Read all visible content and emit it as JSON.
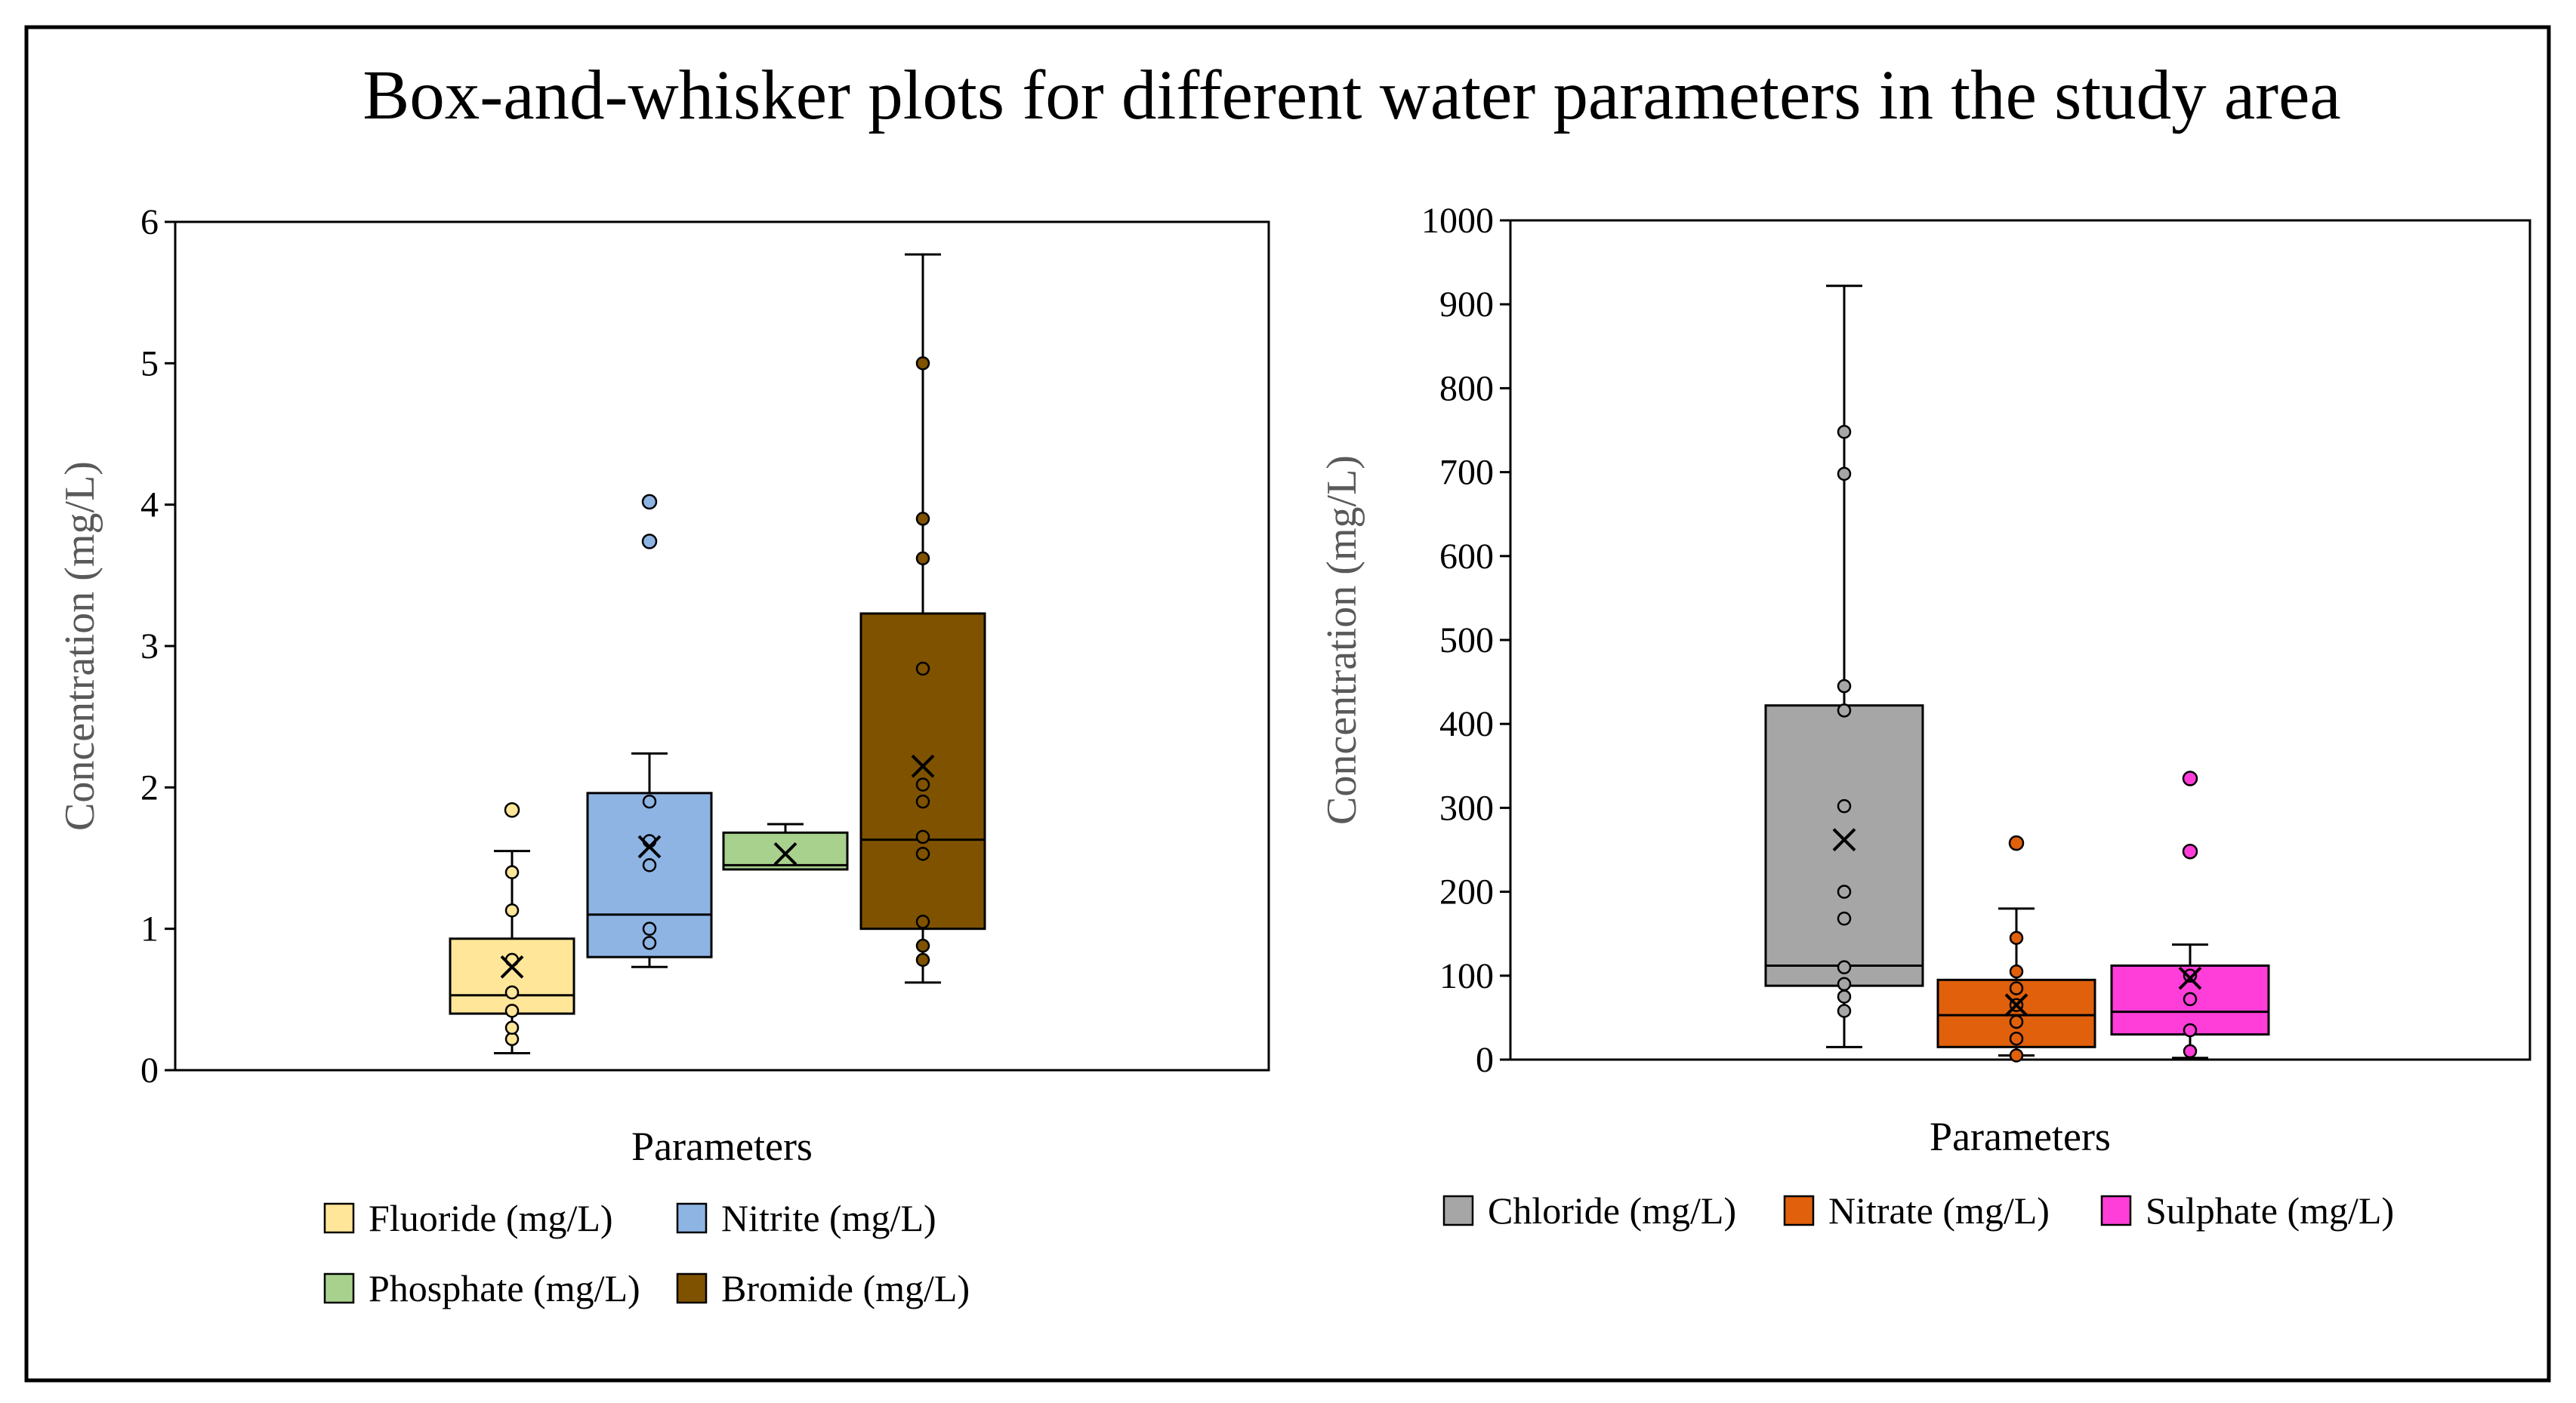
{
  "title": "Box-and-whisker plots for different water parameters in the study area",
  "chart_data": [
    {
      "type": "box",
      "xlabel": "Parameters",
      "ylabel": "Concentration (mg/L)",
      "ylim": [
        0,
        6
      ],
      "yticks": [
        "0",
        "1",
        "2",
        "3",
        "4",
        "5",
        "6"
      ],
      "grid": false,
      "legend_position": "bottom",
      "series": [
        {
          "name": "Fluoride (mg/L)",
          "color": "#FFE699",
          "min": 0.12,
          "q1": 0.4,
          "median": 0.53,
          "q3": 0.93,
          "max": 1.55,
          "mean": 0.73,
          "points": [
            0.22,
            0.3,
            0.42,
            0.55,
            0.78,
            1.13,
            1.4
          ],
          "outliers": [
            1.84
          ]
        },
        {
          "name": "Nitrite (mg/L)",
          "color": "#8EB4E3",
          "min": 0.73,
          "q1": 0.8,
          "median": 1.1,
          "q3": 1.96,
          "max": 2.24,
          "mean": 1.58,
          "points": [
            0.9,
            1.0,
            1.45,
            1.62,
            1.9
          ],
          "outliers": [
            3.74,
            4.02
          ]
        },
        {
          "name": "Phosphate (mg/L)",
          "color": "#A9D18E",
          "min": 1.42,
          "q1": 1.42,
          "median": 1.45,
          "q3": 1.68,
          "max": 1.74,
          "mean": 1.53,
          "points": [],
          "outliers": []
        },
        {
          "name": "Bromide (mg/L)",
          "color": "#7F5200",
          "min": 0.62,
          "q1": 1.0,
          "median": 1.63,
          "q3": 3.23,
          "max": 5.77,
          "mean": 2.15,
          "points": [
            0.78,
            0.88,
            1.05,
            1.53,
            1.65,
            1.9,
            2.02,
            2.84,
            3.62,
            3.9,
            5.0
          ],
          "outliers": []
        }
      ]
    },
    {
      "type": "box",
      "xlabel": "Parameters",
      "ylabel": "Concentration (mg/L)",
      "ylim": [
        0,
        1000
      ],
      "yticks": [
        "0",
        "100",
        "200",
        "300",
        "400",
        "500",
        "600",
        "700",
        "800",
        "900",
        "1000"
      ],
      "grid": false,
      "legend_position": "bottom",
      "series": [
        {
          "name": "Chloride (mg/L)",
          "color": "#A6A6A6",
          "min": 15,
          "q1": 88,
          "median": 112,
          "q3": 422,
          "max": 922,
          "mean": 262,
          "points": [
            58,
            75,
            90,
            110,
            168,
            200,
            302,
            416,
            445,
            698,
            748
          ],
          "outliers": []
        },
        {
          "name": "Nitrate (mg/L)",
          "color": "#E0600B",
          "min": 5,
          "q1": 15,
          "median": 53,
          "q3": 95,
          "max": 180,
          "mean": 65,
          "points": [
            5,
            25,
            45,
            65,
            85,
            105,
            145
          ],
          "outliers": [
            258
          ]
        },
        {
          "name": "Sulphate (mg/L)",
          "color": "#FF3DD8",
          "min": 2,
          "q1": 30,
          "median": 57,
          "q3": 112,
          "max": 137,
          "mean": 97,
          "points": [
            10,
            35,
            72,
            100
          ],
          "outliers": [
            248,
            335
          ]
        }
      ]
    }
  ]
}
